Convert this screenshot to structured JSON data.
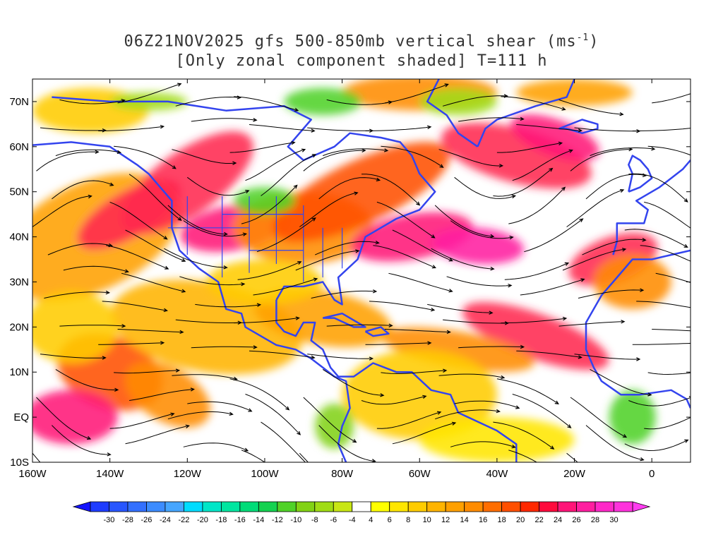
{
  "title": {
    "line1_prefix": "06Z21NOV2025 gfs 500-850mb vertical shear (ms",
    "line1_superscript": "-1",
    "line1_suffix": ")",
    "line2": "[Only zonal component shaded] T=111 h"
  },
  "map": {
    "lon_range": [
      -160,
      10
    ],
    "lat_range": [
      -10,
      75
    ],
    "x_tick_labels": [
      "160W",
      "140W",
      "120W",
      "100W",
      "80W",
      "60W",
      "40W",
      "20W",
      "0"
    ],
    "x_tick_values": [
      -160,
      -140,
      -120,
      -100,
      -80,
      -60,
      -40,
      -20,
      0
    ],
    "y_tick_labels": [
      "10S",
      "EQ",
      "10N",
      "20N",
      "30N",
      "40N",
      "50N",
      "60N",
      "70N"
    ],
    "y_tick_values": [
      -10,
      0,
      10,
      20,
      30,
      40,
      50,
      60,
      70
    ],
    "coastline_color": "#3344ee",
    "streamline_color": "#000000"
  },
  "colorbar": {
    "labels": [
      "-30",
      "-28",
      "-26",
      "-24",
      "-22",
      "-20",
      "-18",
      "-16",
      "-14",
      "-12",
      "-10",
      "-8",
      "-6",
      "-4",
      "4",
      "6",
      "8",
      "10",
      "12",
      "14",
      "16",
      "18",
      "20",
      "22",
      "24",
      "26",
      "28",
      "30"
    ],
    "colors": [
      "#1e3cff",
      "#2856ff",
      "#3370ff",
      "#3c8cff",
      "#46a6ff",
      "#00dcff",
      "#00e6c8",
      "#00e6a0",
      "#00dc78",
      "#14d250",
      "#50d228",
      "#82d214",
      "#a0dc14",
      "#c8e614",
      "#ffffff",
      "#ffff00",
      "#ffe600",
      "#ffcc00",
      "#ffb400",
      "#ffa000",
      "#ff8c00",
      "#ff6e00",
      "#ff5000",
      "#ff2800",
      "#ff0a3c",
      "#ff1478",
      "#ff1ea0",
      "#ff28c8",
      "#ff32dc"
    ]
  }
}
